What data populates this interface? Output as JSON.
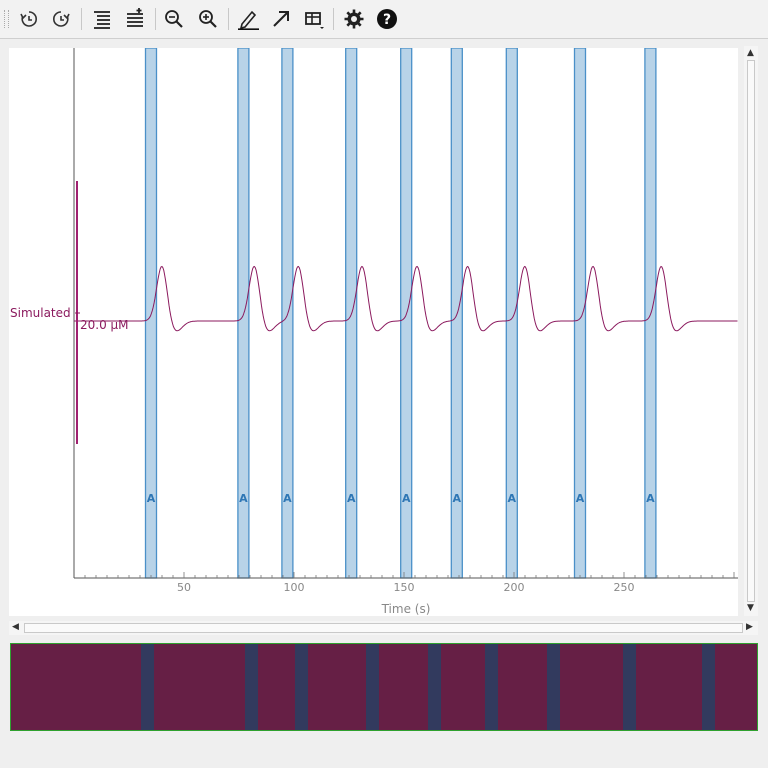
{
  "colors": {
    "trace": "#8b1a5e",
    "trace_label": "#8b1a5e",
    "annotation_fill": "#b8d3e8",
    "annotation_border": "#4a90c8",
    "annotation_text": "#2f77b5",
    "overview_bg": "#661f45",
    "overview_marker": "#323a5e",
    "overview_border": "#2fa12f",
    "axis": "#555555",
    "tick_label": "#888888"
  },
  "toolbar": {
    "buttons": [
      {
        "name": "history-back-icon"
      },
      {
        "name": "history-forward-icon"
      },
      {
        "name": "align-lines-icon"
      },
      {
        "name": "add-trace-icon"
      },
      {
        "name": "zoom-out-icon"
      },
      {
        "name": "zoom-in-icon"
      },
      {
        "name": "pen-icon"
      },
      {
        "name": "arrow-icon"
      },
      {
        "name": "table-dropdown-icon"
      },
      {
        "name": "gear-icon"
      },
      {
        "name": "help-icon"
      }
    ]
  },
  "chart_data": {
    "type": "line",
    "xlabel": "Time (s)",
    "x_ticks": [
      50,
      100,
      150,
      200,
      250
    ],
    "xlim": [
      0,
      300
    ],
    "series": [
      {
        "name": "Simulated",
        "scale_label": "20.0 µM",
        "peak_times": [
          40,
          82,
          102,
          131,
          156,
          179,
          205,
          236,
          267
        ]
      }
    ],
    "annotations": {
      "label": "A",
      "times": [
        35,
        77,
        97,
        126,
        151,
        174,
        199,
        230,
        262
      ]
    }
  }
}
